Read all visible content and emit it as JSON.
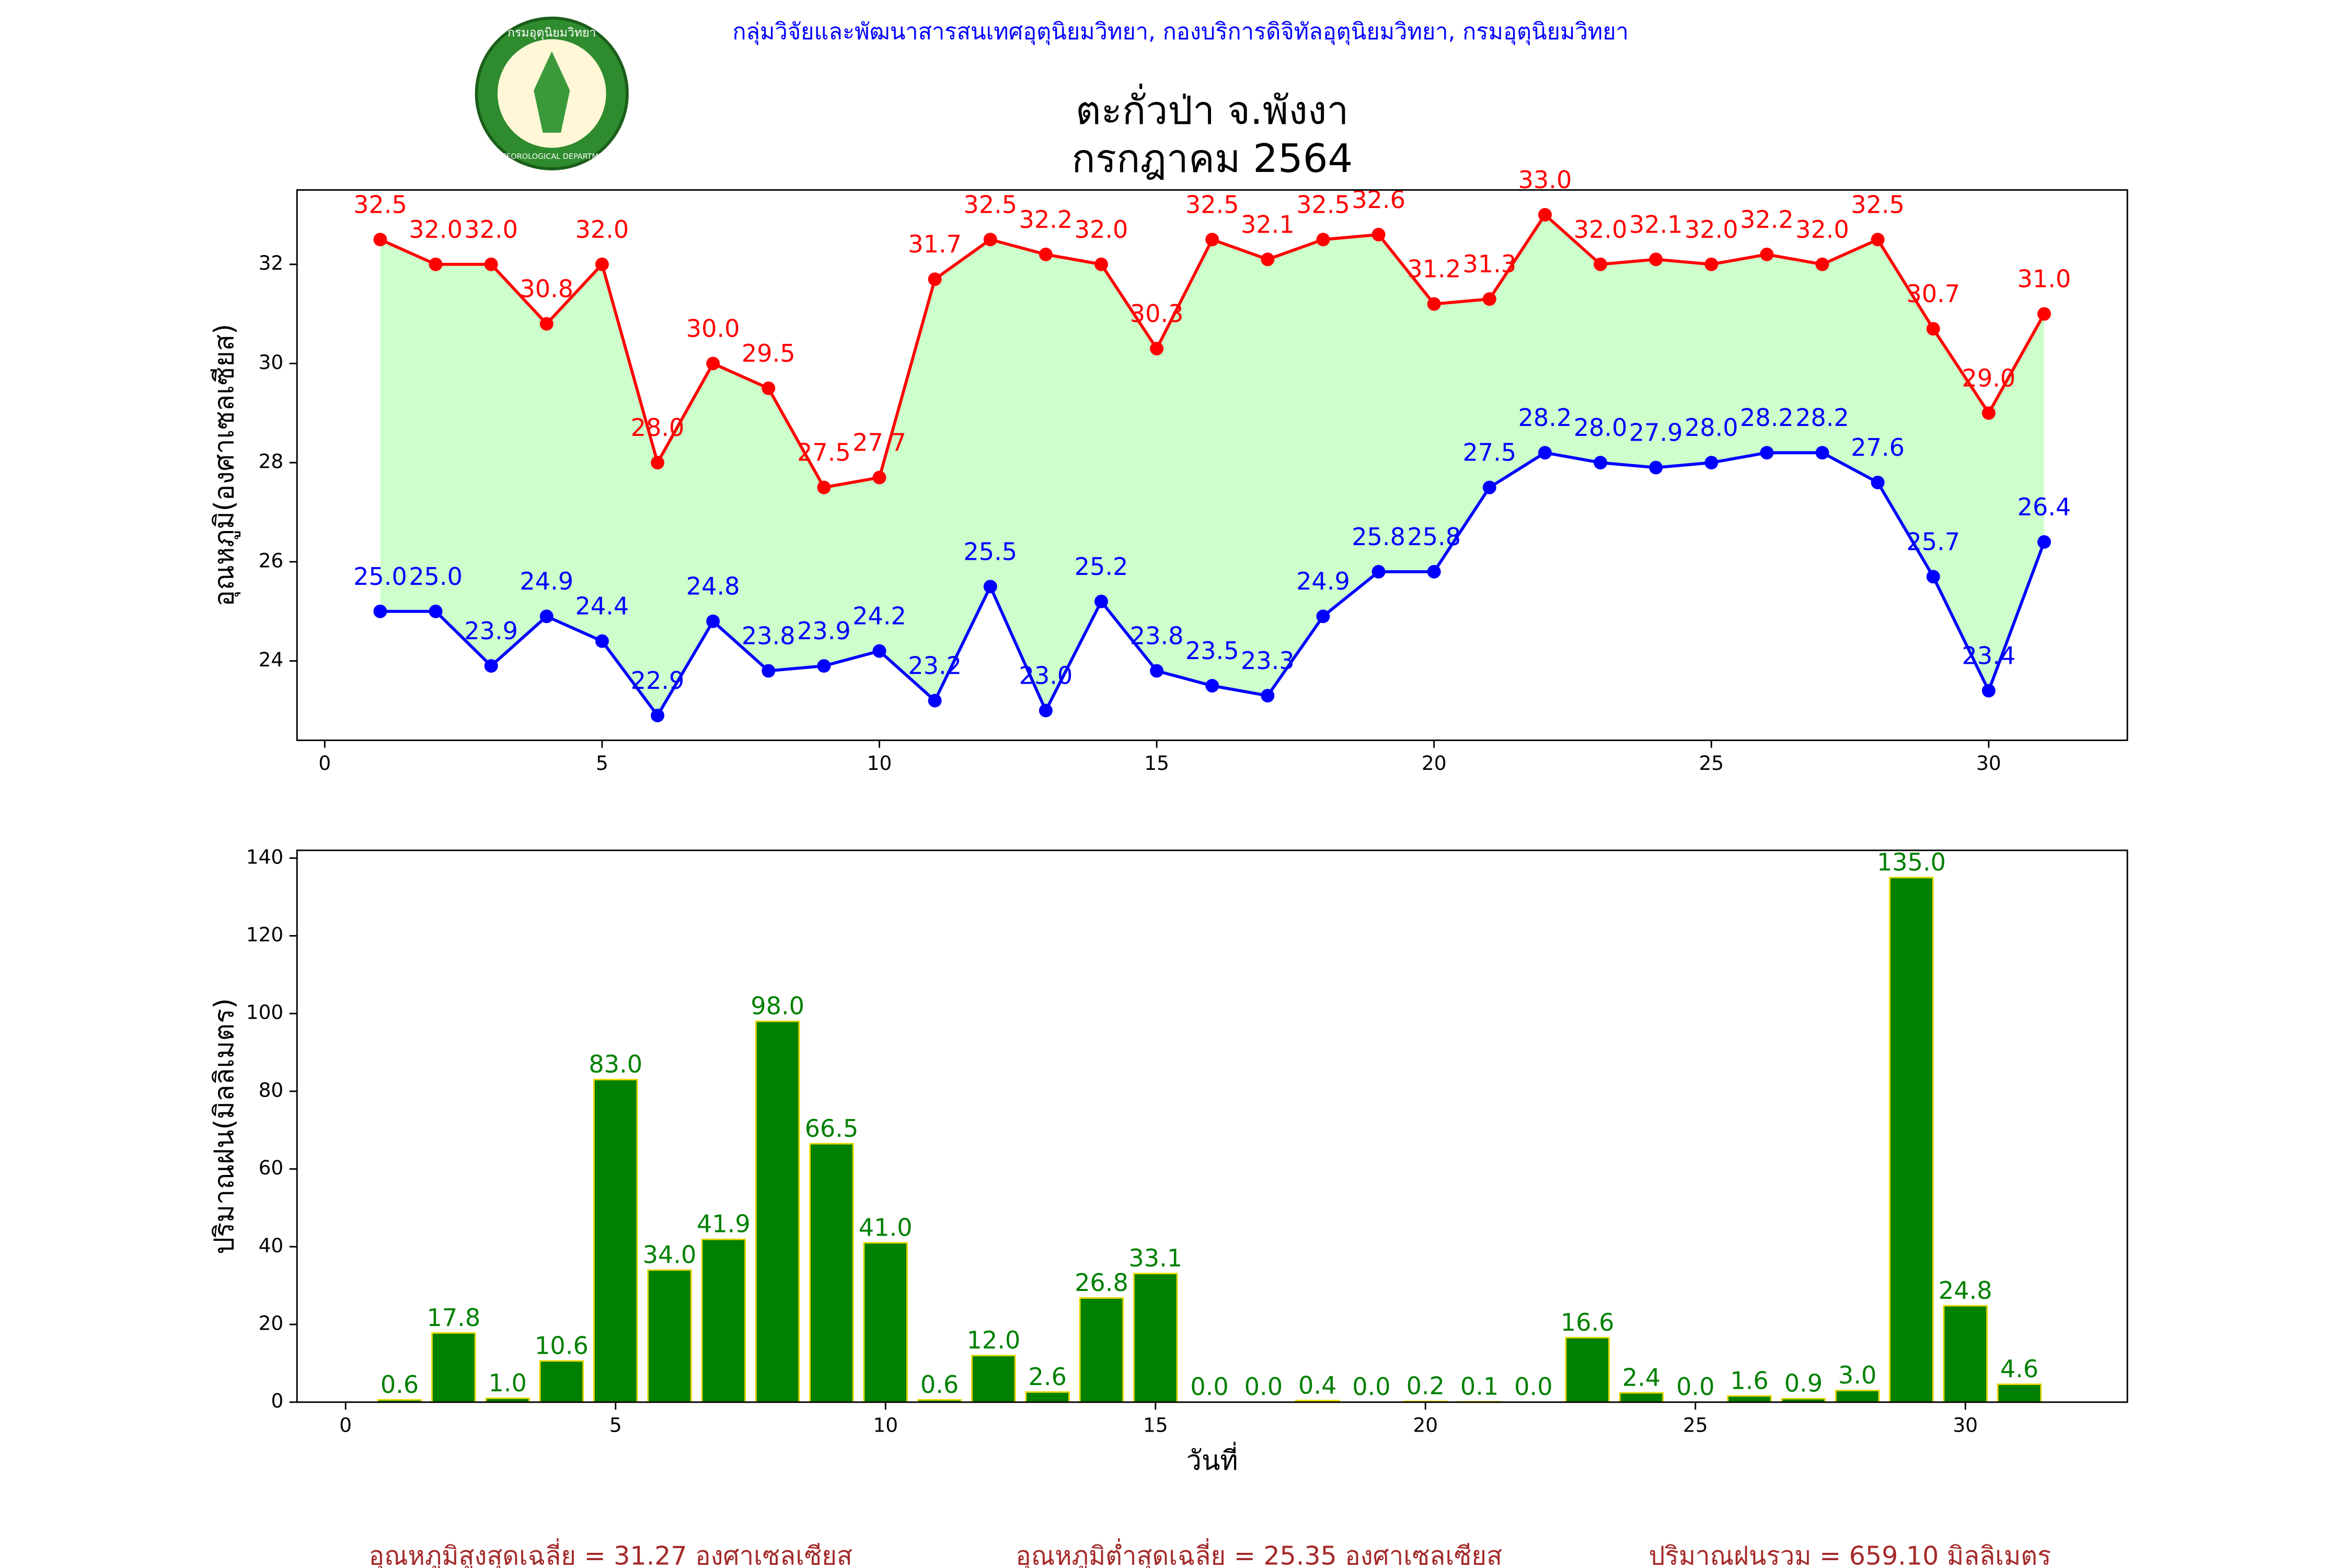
{
  "header": {
    "org": "กลุ่มวิจัยและพัฒนาสารสนเทศอุตุนิยมวิทยา, กองบริการดิจิทัลอุตุนิยมวิทยา, กรมอุตุนิยมวิทยา",
    "logo_top": "กรมอุตุนิยมวิทยา",
    "logo_bottom": "METEOROLOGICAL DEPARTMENT"
  },
  "chart_data": [
    {
      "type": "line",
      "title": "ตะกั่วป่า จ.พังงา",
      "subtitle": "กรกฎาคม 2564",
      "y_label": "อุณหภูมิ(องศาเซลเซียส)",
      "x": [
        1,
        2,
        3,
        4,
        5,
        6,
        7,
        8,
        9,
        10,
        11,
        12,
        13,
        14,
        15,
        16,
        17,
        18,
        19,
        20,
        21,
        22,
        23,
        24,
        25,
        26,
        27,
        28,
        29,
        30,
        31
      ],
      "xlim": [
        -0.5,
        32.5
      ],
      "xticks": [
        0,
        5,
        10,
        15,
        20,
        25,
        30
      ],
      "ylim": [
        22.4,
        33.5
      ],
      "yticks": [
        24,
        26,
        28,
        30,
        32
      ],
      "fill_color": "#ccffcc",
      "series": [
        {
          "color": "#ff0000",
          "values": [
            32.5,
            32.0,
            32.0,
            30.8,
            32.0,
            28.0,
            30.0,
            29.5,
            27.5,
            27.7,
            31.7,
            32.5,
            32.2,
            32.0,
            30.3,
            32.5,
            32.1,
            32.5,
            32.6,
            31.2,
            31.3,
            33.0,
            32.0,
            32.1,
            32.0,
            32.2,
            32.0,
            32.5,
            30.7,
            29.0,
            31.0
          ],
          "value_labels": [
            "32.5",
            "32.0",
            "32.0",
            "30.8",
            "32.0",
            "28.0",
            "30.0",
            "29.5",
            "27.5",
            "27.7",
            "31.7",
            "32.5",
            "32.2",
            "32.0",
            "30.3",
            "32.5",
            "32.1",
            "32.5",
            "32.6",
            "31.2",
            "31.3",
            "33.0",
            "32.0",
            "32.1",
            "32.0",
            "32.2",
            "32.0",
            "32.5",
            "30.7",
            "29.0",
            "31.0"
          ]
        },
        {
          "color": "#0000ff",
          "values": [
            25.0,
            25.0,
            23.9,
            24.9,
            24.4,
            22.9,
            24.8,
            23.8,
            23.9,
            24.2,
            23.2,
            25.5,
            23.0,
            25.2,
            23.8,
            23.5,
            23.3,
            24.9,
            25.8,
            25.8,
            27.5,
            28.2,
            28.0,
            27.9,
            28.0,
            28.2,
            28.2,
            27.6,
            25.7,
            23.4,
            26.4
          ],
          "value_labels": [
            "25.0",
            "25.0",
            "23.9",
            "24.9",
            "24.4",
            "22.9",
            "24.8",
            "23.8",
            "23.9",
            "24.2",
            "23.2",
            "25.5",
            "23.0",
            "25.2",
            "23.8",
            "23.5",
            "23.3",
            "24.9",
            "25.8",
            "25.8",
            "27.5",
            "28.2",
            "28.0",
            "27.9",
            "28.0",
            "28.2",
            "28.2",
            "27.6",
            "25.7",
            "23.4",
            "26.4"
          ]
        }
      ]
    },
    {
      "type": "bar",
      "x_label": "วันที่",
      "y_label": "ปริมาณฝน(มิลลิเมตร)",
      "x": [
        1,
        2,
        3,
        4,
        5,
        6,
        7,
        8,
        9,
        10,
        11,
        12,
        13,
        14,
        15,
        16,
        17,
        18,
        19,
        20,
        21,
        22,
        23,
        24,
        25,
        26,
        27,
        28,
        29,
        30,
        31
      ],
      "xlim": [
        -0.9,
        33
      ],
      "xticks": [
        0,
        5,
        10,
        15,
        20,
        25,
        30
      ],
      "ylim": [
        0,
        142
      ],
      "yticks": [
        0,
        20,
        40,
        60,
        80,
        100,
        120,
        140
      ],
      "color": "#008000",
      "edge_color": "#e6d800",
      "label_color": "#008000",
      "values": [
        0.6,
        17.8,
        1.0,
        10.6,
        83.0,
        34.0,
        41.9,
        98.0,
        66.5,
        41.0,
        0.6,
        12.0,
        2.6,
        26.8,
        33.1,
        0.0,
        0.0,
        0.4,
        0.0,
        0.2,
        0.1,
        0.0,
        16.6,
        2.4,
        0.0,
        1.6,
        0.9,
        3.0,
        135.0,
        24.8,
        4.6
      ],
      "value_labels": [
        "0.6",
        "17.8",
        "1.0",
        "10.6",
        "83.0",
        "34.0",
        "41.9",
        "98.0",
        "66.5",
        "41.0",
        "0.6",
        "12.0",
        "2.6",
        "26.8",
        "33.1",
        "0.0",
        "0.0",
        "0.4",
        "0.0",
        "0.2",
        "0.1",
        "0.0",
        "16.6",
        "2.4",
        "0.0",
        "1.6",
        "0.9",
        "3.0",
        "135.0",
        "24.8",
        "4.6"
      ]
    }
  ],
  "footer": [
    "อุณหภูมิสูงสุดเฉลี่ย = 31.27 องศาเซลเซียส",
    "อุณหภูมิต่ำสุดเฉลี่ย = 25.35 องศาเซลเซียส",
    "ปริมาณฝนรวม = 659.10 มิลลิเมตร"
  ]
}
